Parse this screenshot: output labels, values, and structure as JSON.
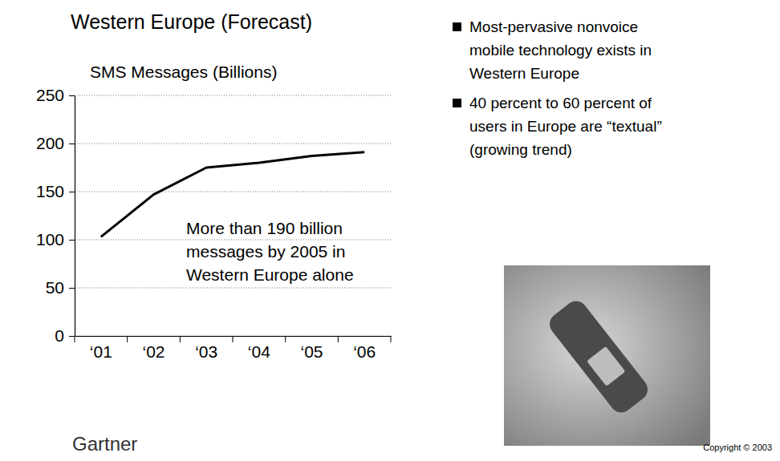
{
  "chart_data": {
    "type": "line",
    "title": "Western Europe (Forecast)",
    "y_label": "SMS Messages (Billions)",
    "categories": [
      "‘01",
      "‘02",
      "‘03",
      "‘04",
      "‘05",
      "‘06"
    ],
    "values": [
      103,
      147,
      175,
      180,
      187,
      191
    ],
    "color": "#000000",
    "ylim": [
      0,
      250
    ],
    "yticks": [
      0,
      50,
      100,
      150,
      200,
      250
    ],
    "grid": true,
    "annotation": [
      "More than 190 billion",
      "messages by 2005 in",
      "Western Europe alone"
    ]
  },
  "bullets": [
    [
      "Most-pervasive nonvoice",
      "mobile technology exists in",
      "Western Europe"
    ],
    [
      "40 percent to 60 percent of",
      "users in Europe are “textual”",
      "(growing trend)"
    ]
  ],
  "footer": {
    "logo": "Gartner",
    "copyright": "Copyright © 2003"
  }
}
